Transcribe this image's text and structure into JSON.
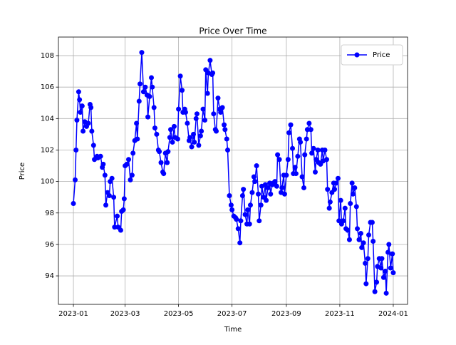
{
  "chart_data": {
    "type": "line",
    "title": "Price Over Time",
    "xlabel": "Time",
    "ylabel": "Price",
    "x": [
      0,
      2,
      3,
      4,
      6,
      7,
      8,
      10,
      11,
      13,
      15,
      17,
      19,
      20,
      21,
      23,
      24,
      27,
      28,
      31,
      33,
      34,
      36,
      37,
      39,
      41,
      42,
      44,
      46,
      47,
      50,
      51,
      54,
      55,
      57,
      58,
      59,
      61,
      63,
      65,
      67,
      68,
      70,
      72,
      73,
      75,
      76,
      78,
      80,
      82,
      84,
      85,
      87,
      89,
      90,
      92,
      93,
      95,
      97,
      98,
      100,
      102,
      103,
      105,
      107,
      108,
      110,
      111,
      113,
      115,
      116,
      119,
      120,
      122,
      124,
      125,
      127,
      128,
      130,
      132,
      133,
      135,
      137,
      138,
      140,
      141,
      143,
      145,
      146,
      148,
      150,
      151,
      153,
      154,
      156,
      158,
      159,
      160,
      162,
      163,
      165,
      167,
      168,
      170,
      172,
      173,
      175,
      176,
      178,
      180,
      181,
      183,
      185,
      186,
      188,
      190,
      191,
      193,
      194,
      196,
      198,
      199,
      201,
      202,
      204,
      206,
      207,
      209,
      211,
      212,
      214,
      215,
      217,
      219,
      220,
      222,
      224,
      225,
      227,
      228,
      230,
      232,
      233,
      235,
      237,
      238,
      240,
      241,
      243,
      245,
      246,
      248,
      250,
      251,
      253,
      254,
      256,
      258,
      259,
      261,
      263,
      264,
      266,
      267,
      269,
      271,
      272,
      274,
      276,
      277,
      279,
      280,
      282,
      284,
      285,
      287,
      289,
      290,
      292,
      293,
      295,
      297,
      298,
      300,
      302,
      303,
      305,
      306,
      308,
      310,
      311,
      313,
      315,
      316,
      318,
      319,
      321,
      323,
      324,
      326,
      328,
      329,
      331,
      333,
      334,
      336,
      337,
      339,
      341,
      342,
      344,
      346,
      347,
      349,
      351,
      352,
      354,
      356,
      357,
      359,
      360,
      362,
      364,
      365
    ],
    "series": [
      {
        "name": "Price",
        "color": "#0000ff",
        "values": [
          98.6,
          100.1,
          102.0,
          103.9,
          105.7,
          105.2,
          104.4,
          104.8,
          103.2,
          103.8,
          103.5,
          103.7,
          104.9,
          104.7,
          103.2,
          102.3,
          101.4,
          101.6,
          101.5,
          101.6,
          100.9,
          101.1,
          100.4,
          98.5,
          99.3,
          99.1,
          100.0,
          100.2,
          99.0,
          97.1,
          97.8,
          97.1,
          96.9,
          98.1,
          98.2,
          98.9,
          101.0,
          101.1,
          101.4,
          100.1,
          100.4,
          101.8,
          102.6,
          103.7,
          102.7,
          105.1,
          106.2,
          108.2,
          105.7,
          106.0,
          105.5,
          104.1,
          105.4,
          106.6,
          106.0,
          104.7,
          103.4,
          103.0,
          102.0,
          101.9,
          101.2,
          100.6,
          100.5,
          101.8,
          101.2,
          101.9,
          102.8,
          103.3,
          102.5,
          103.5,
          102.8,
          102.7,
          104.6,
          106.7,
          105.8,
          104.4,
          104.6,
          104.4,
          103.7,
          102.6,
          102.8,
          102.2,
          103.0,
          102.5,
          104.0,
          104.3,
          102.3,
          102.9,
          103.2,
          104.6,
          103.9,
          107.1,
          105.6,
          106.9,
          107.7,
          106.8,
          106.9,
          104.3,
          103.3,
          103.2,
          105.3,
          104.6,
          104.4,
          104.7,
          103.6,
          103.3,
          102.7,
          102.0,
          99.1,
          98.5,
          98.2,
          97.8,
          97.7,
          97.6,
          97.0,
          96.1,
          97.5,
          99.1,
          99.5,
          97.9,
          97.3,
          98.2,
          97.3,
          98.5,
          99.3,
          100.3,
          100.0,
          101.0,
          99.2,
          97.5,
          98.5,
          99.7,
          99.0,
          99.8,
          98.8,
          99.6,
          99.9,
          99.2,
          99.8,
          99.9,
          100.0,
          99.7,
          101.7,
          101.4,
          99.3,
          99.6,
          100.4,
          99.2,
          100.4,
          101.4,
          103.1,
          103.6,
          102.1,
          100.5,
          100.9,
          100.5,
          101.6,
          102.7,
          102.5,
          100.3,
          99.6,
          101.7,
          102.7,
          103.3,
          103.7,
          103.3,
          101.8,
          102.1,
          100.6,
          101.4,
          102.0,
          101.2,
          101.1,
          102.0,
          101.3,
          102.0,
          101.4,
          99.5,
          98.3,
          98.7,
          99.3,
          99.9,
          99.5,
          99.9,
          100.2,
          97.5,
          98.8,
          97.3,
          97.5,
          98.3,
          97.0,
          96.9,
          96.3,
          98.6,
          99.9,
          99.2,
          99.6,
          98.4,
          97.0,
          96.3,
          96.7,
          95.8,
          96.1,
          94.8,
          93.5,
          95.1,
          96.6,
          97.4,
          97.4,
          96.2,
          93.0,
          93.6,
          94.6,
          95.1,
          94.5,
          95.1,
          93.9,
          94.3,
          92.9,
          95.5,
          96.0,
          94.5,
          95.4,
          94.2
        ]
      }
    ],
    "xlim": [
      -17.1,
      381.3
    ],
    "xticks": [
      {
        "value": 0,
        "label": "2023-01"
      },
      {
        "value": 59,
        "label": "2023-03"
      },
      {
        "value": 120,
        "label": "2023-05"
      },
      {
        "value": 181,
        "label": "2023-07"
      },
      {
        "value": 243,
        "label": "2023-09"
      },
      {
        "value": 304,
        "label": "2023-11"
      },
      {
        "value": 365,
        "label": "2024-01"
      }
    ],
    "ylim": [
      92.19,
      109.18
    ],
    "yticks": [
      94,
      96,
      98,
      100,
      102,
      104,
      106,
      108
    ],
    "grid": true,
    "legend": "upper right"
  }
}
